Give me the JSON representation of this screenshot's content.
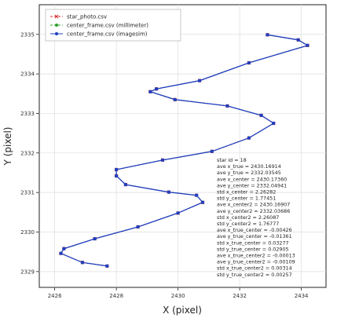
{
  "chart_data": {
    "type": "line",
    "xlabel": "X (pixel)",
    "ylabel": "Y (pixel)",
    "xlim": [
      2425.5,
      2434.8
    ],
    "ylim": [
      2328.6,
      2335.75
    ],
    "x_ticks": [
      2426,
      2428,
      2430,
      2432,
      2434
    ],
    "y_ticks": [
      2329,
      2330,
      2331,
      2332,
      2333,
      2334,
      2335
    ],
    "grid": true,
    "legend_position": "top-left",
    "series": [
      {
        "name": "star_photo.csv",
        "color": "#d62728",
        "marker": "x",
        "linestyle": "dashed",
        "x": [
          2427.7,
          2426.9,
          2426.2,
          2426.3,
          2427.3,
          2428.7,
          2430.0,
          2430.8,
          2430.6,
          2429.7,
          2428.3,
          2428.0,
          2428.0,
          2429.5,
          2431.1,
          2432.3,
          2433.1,
          2432.7,
          2431.6,
          2429.9,
          2429.1,
          2429.3,
          2430.7,
          2432.3,
          2434.2,
          2433.9,
          2432.9
        ],
        "y": [
          2329.14,
          2329.23,
          2329.46,
          2329.58,
          2329.83,
          2330.13,
          2330.48,
          2330.75,
          2330.93,
          2331.01,
          2331.2,
          2331.42,
          2331.58,
          2331.82,
          2332.04,
          2332.38,
          2332.75,
          2332.95,
          2333.19,
          2333.35,
          2333.55,
          2333.62,
          2333.83,
          2334.28,
          2334.72,
          2334.86,
          2334.99
        ]
      },
      {
        "name": "center_frame.csv (millimeter)",
        "color": "#2ca02c",
        "marker": "o",
        "linestyle": "dashed",
        "x": [
          2427.7,
          2426.9,
          2426.2,
          2426.3,
          2427.3,
          2428.7,
          2430.0,
          2430.8,
          2430.6,
          2429.7,
          2428.3,
          2428.0,
          2428.0,
          2429.5,
          2431.1,
          2432.3,
          2433.1,
          2432.7,
          2431.6,
          2429.9,
          2429.1,
          2429.3,
          2430.7,
          2432.3,
          2434.2,
          2433.9,
          2432.9
        ],
        "y": [
          2329.14,
          2329.23,
          2329.46,
          2329.58,
          2329.83,
          2330.13,
          2330.48,
          2330.75,
          2330.93,
          2331.01,
          2331.2,
          2331.42,
          2331.58,
          2331.82,
          2332.04,
          2332.38,
          2332.75,
          2332.95,
          2333.19,
          2333.35,
          2333.55,
          2333.62,
          2333.83,
          2334.28,
          2334.72,
          2334.86,
          2334.99
        ]
      },
      {
        "name": "center_frame.csv (imagesim)",
        "color": "#1f3fbf",
        "marker": "o",
        "linestyle": "solid",
        "x": [
          2427.7,
          2426.9,
          2426.2,
          2426.3,
          2427.3,
          2428.7,
          2430.0,
          2430.8,
          2430.6,
          2429.7,
          2428.3,
          2428.0,
          2428.0,
          2429.5,
          2431.1,
          2432.3,
          2433.1,
          2432.7,
          2431.6,
          2429.9,
          2429.1,
          2429.3,
          2430.7,
          2432.3,
          2434.2,
          2433.9,
          2432.9
        ],
        "y": [
          2329.14,
          2329.23,
          2329.46,
          2329.58,
          2329.83,
          2330.13,
          2330.48,
          2330.75,
          2330.93,
          2331.01,
          2331.2,
          2331.42,
          2331.58,
          2331.82,
          2332.04,
          2332.38,
          2332.75,
          2332.95,
          2333.19,
          2333.35,
          2333.55,
          2333.62,
          2333.83,
          2334.28,
          2334.72,
          2334.86,
          2334.99
        ]
      }
    ],
    "annotation": [
      "star id = 18",
      "ave x_true = 2430.16914",
      "ave y_true = 2332.03545",
      "ave x_center = 2430.17360",
      "ave y_center = 2332.04941",
      "std x_center = 2.26282",
      "std y_center = 1.77451",
      "ave x_center2 = 2430.16907",
      "ave y_center2 = 2332.03686",
      "std x_center2 = 2.26087",
      "std y_center2 = 1.76777",
      "ave x_true_center = -0.00426",
      "ave y_true_center = -0.01361",
      "std x_true_center = 0.03277",
      "std y_true_center = 0.02905",
      "ave x_true_center2 = -0.00013",
      "ave y_true_center2 = -0.00109",
      "std x_true_center2 = 0.00314",
      "std y_true_center2 = 0.00257"
    ]
  }
}
